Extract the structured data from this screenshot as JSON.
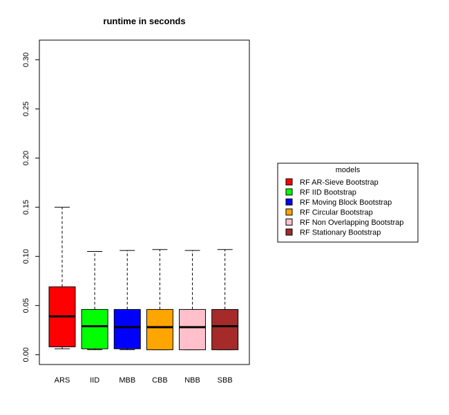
{
  "chart_data": {
    "type": "boxplot",
    "title": "runtime in seconds",
    "xlabel": "",
    "ylabel": "",
    "ylim": [
      -0.01,
      0.32
    ],
    "yticks": [
      0.0,
      0.05,
      0.1,
      0.15,
      0.2,
      0.25,
      0.3
    ],
    "ytick_labels": [
      "0.00",
      "0.05",
      "0.10",
      "0.15",
      "0.20",
      "0.25",
      "0.30"
    ],
    "categories": [
      "ARS",
      "IID",
      "MBB",
      "CBB",
      "NBB",
      "SBB"
    ],
    "series": [
      {
        "category": "ARS",
        "color": "#ff0000",
        "whisker_low": 0.006,
        "q1": 0.008,
        "median": 0.039,
        "q3": 0.069,
        "whisker_high": 0.15
      },
      {
        "category": "IID",
        "color": "#00ff00",
        "whisker_low": 0.005,
        "q1": 0.006,
        "median": 0.029,
        "q3": 0.046,
        "whisker_high": 0.105
      },
      {
        "category": "MBB",
        "color": "#0000ff",
        "whisker_low": 0.005,
        "q1": 0.006,
        "median": 0.028,
        "q3": 0.046,
        "whisker_high": 0.106
      },
      {
        "category": "CBB",
        "color": "#ffa500",
        "whisker_low": 0.005,
        "q1": 0.005,
        "median": 0.028,
        "q3": 0.046,
        "whisker_high": 0.107
      },
      {
        "category": "NBB",
        "color": "#ffc0cb",
        "whisker_low": 0.005,
        "q1": 0.005,
        "median": 0.028,
        "q3": 0.046,
        "whisker_high": 0.106
      },
      {
        "category": "SBB",
        "color": "#a52a2a",
        "whisker_low": 0.005,
        "q1": 0.005,
        "median": 0.029,
        "q3": 0.046,
        "whisker_high": 0.107
      }
    ],
    "legend": {
      "title": "models",
      "placement": "right",
      "entries": [
        {
          "label": "RF AR-Sieve Bootstrap",
          "color": "#ff0000"
        },
        {
          "label": "RF IID Bootstrap",
          "color": "#00ff00"
        },
        {
          "label": "RF Moving Block Bootstrap",
          "color": "#0000ff"
        },
        {
          "label": "RF Circular Bootstrap",
          "color": "#ffa500"
        },
        {
          "label": "RF Non Overlapping Bootstrap",
          "color": "#ffc0cb"
        },
        {
          "label": "RF Stationary Bootstrap",
          "color": "#a52a2a"
        }
      ]
    },
    "grid": false
  }
}
